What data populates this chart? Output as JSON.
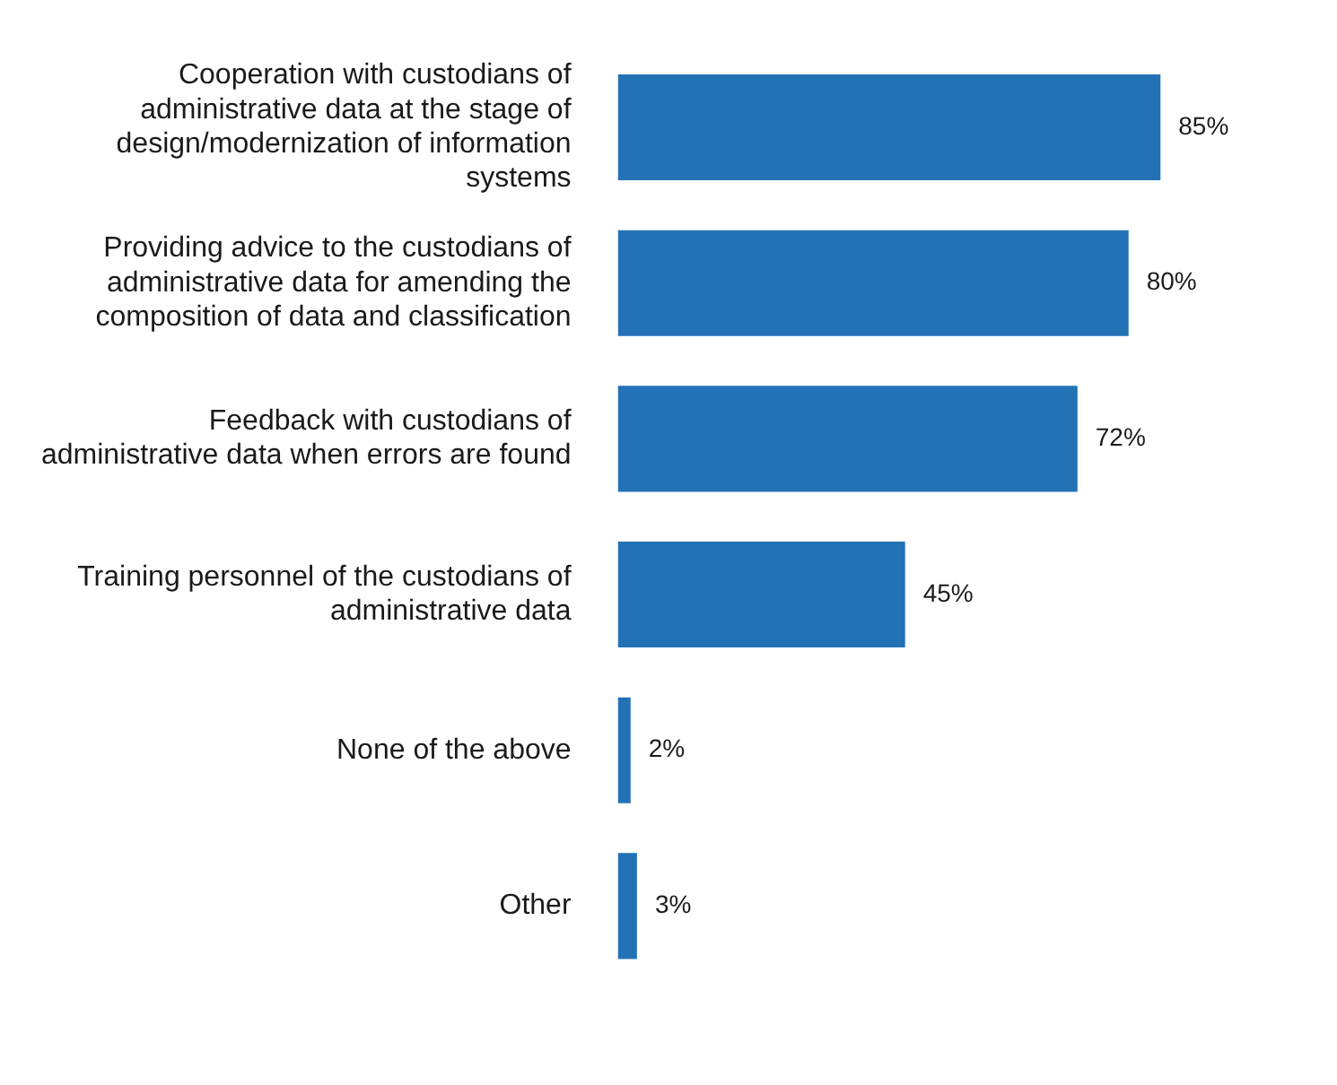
{
  "chart_data": {
    "type": "bar",
    "orientation": "horizontal",
    "categories": [
      "Cooperation with custodians of administrative data at the stage of design/modernization of information systems",
      "Providing advice to the custodians of administrative data for amending the composition of data and classification",
      "Feedback with custodians of administrative data when errors are found",
      "Training personnel of the custodians of administrative data",
      "None of the above",
      "Other"
    ],
    "values": [
      85,
      80,
      72,
      45,
      2,
      3
    ],
    "value_labels": [
      "85%",
      "80%",
      "72%",
      "45%",
      "2%",
      "3%"
    ],
    "color": "#2372b6",
    "tick_labels": "y"
  }
}
